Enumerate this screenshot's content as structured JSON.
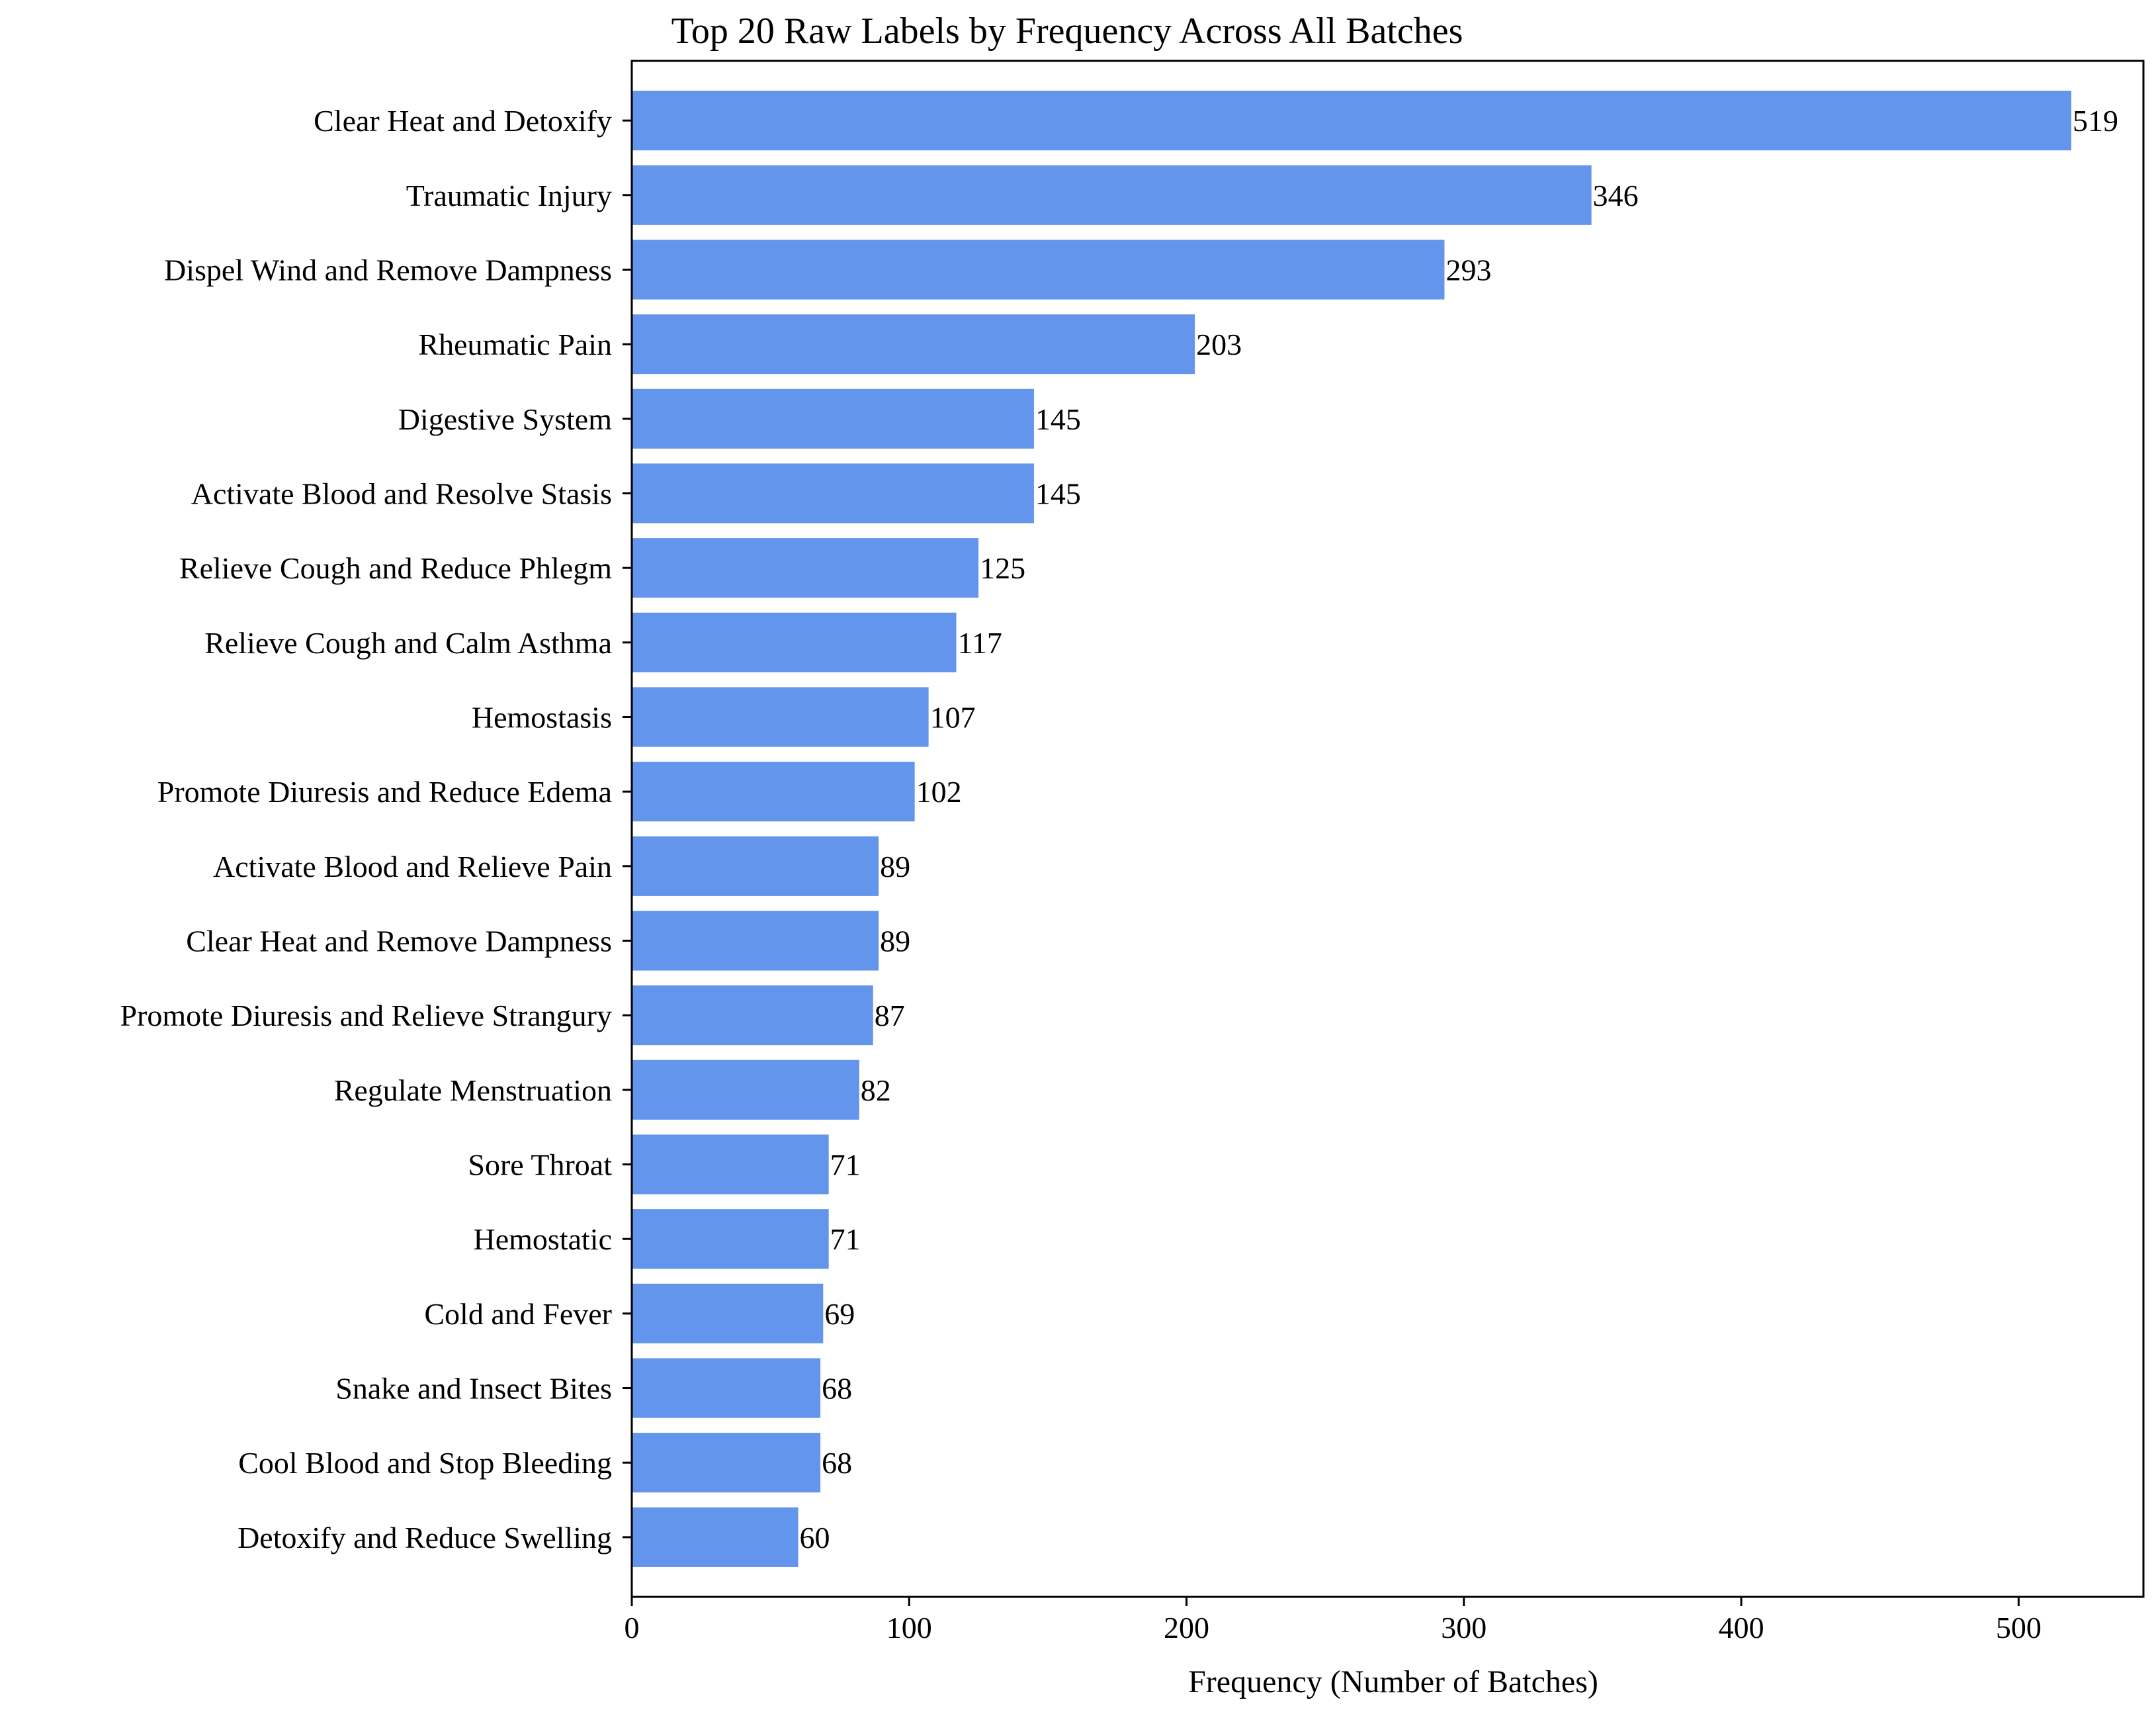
{
  "chart_data": {
    "type": "bar",
    "orientation": "horizontal",
    "title": "Top 20 Raw Labels by Frequency Across All Batches",
    "xlabel": "Frequency (Number of Batches)",
    "ylabel": "",
    "xlim": [
      0,
      545
    ],
    "xticks": [
      0,
      100,
      200,
      300,
      400,
      500
    ],
    "grid": false,
    "bar_color": "#6495ED",
    "categories": [
      "Clear Heat and Detoxify",
      "Traumatic Injury",
      "Dispel Wind and Remove Dampness",
      "Rheumatic Pain",
      "Digestive System",
      "Activate Blood and Resolve Stasis",
      "Relieve Cough and Reduce Phlegm",
      "Relieve Cough and Calm Asthma",
      "Hemostasis",
      "Promote Diuresis and Reduce Edema",
      "Activate Blood and Relieve Pain",
      "Clear Heat and Remove Dampness",
      "Promote Diuresis and Relieve Strangury",
      "Regulate Menstruation",
      "Sore Throat",
      "Hemostatic",
      "Cold and Fever",
      "Snake and Insect Bites",
      "Cool Blood and Stop Bleeding",
      "Detoxify and Reduce Swelling"
    ],
    "values": [
      519,
      346,
      293,
      203,
      145,
      145,
      125,
      117,
      107,
      102,
      89,
      89,
      87,
      82,
      71,
      71,
      69,
      68,
      68,
      60
    ]
  }
}
